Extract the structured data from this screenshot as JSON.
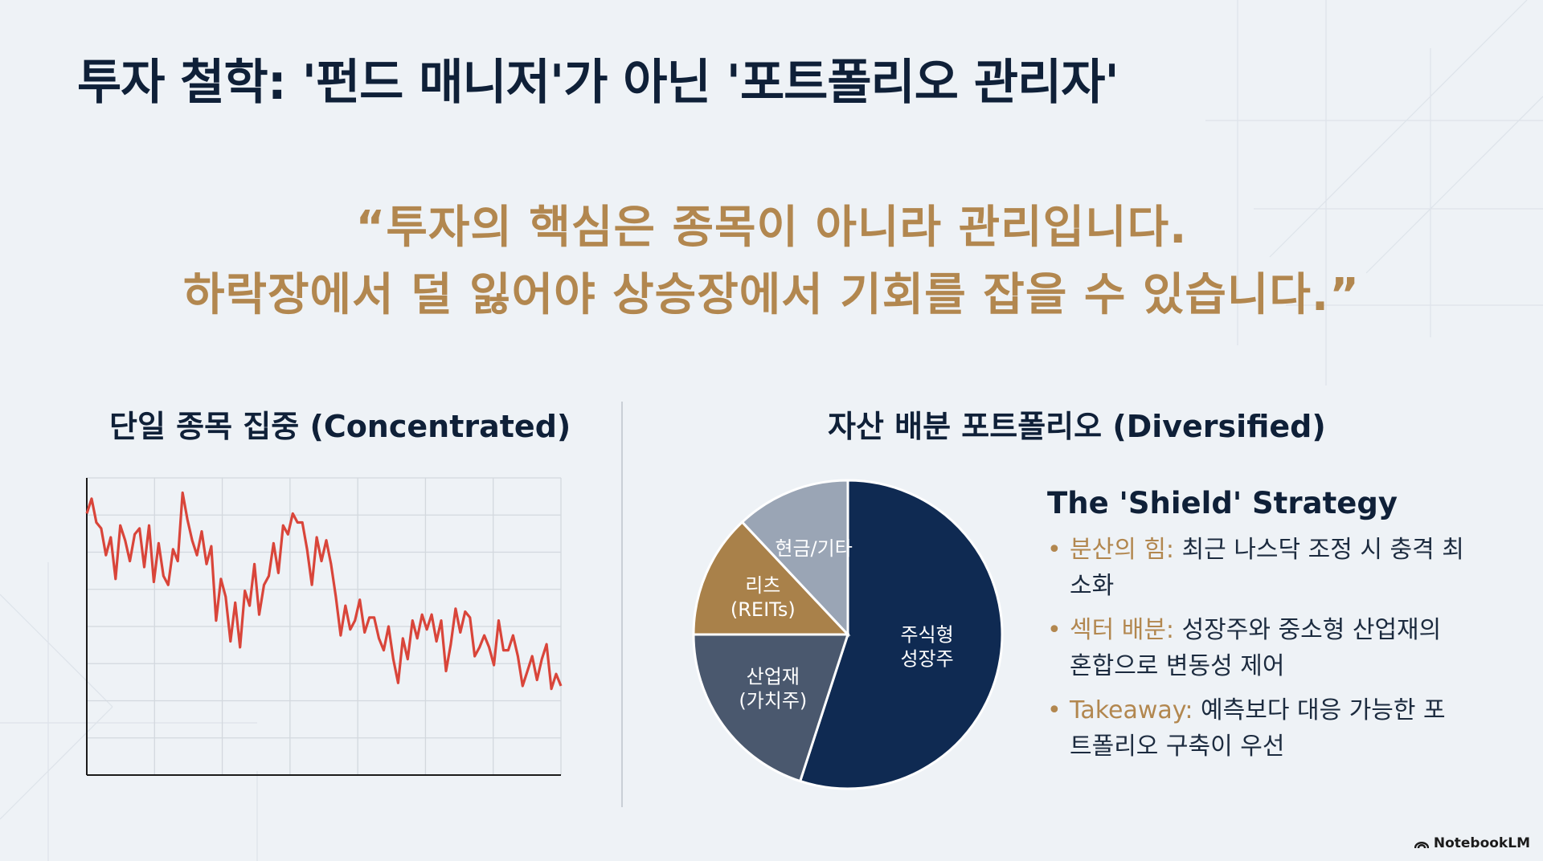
{
  "title": "투자 철학: '펀드 매니저'가 아닌 '포트폴리오 관리자'",
  "quote": {
    "line1": "“투자의 핵심은 종목이 아니라 관리입니다.",
    "line2": "하락장에서 덜 잃어야 상승장에서 기회를 잡을 수 있습니다.”"
  },
  "left_panel": {
    "title": "단일 종목 집중 (Concentrated)"
  },
  "right_panel": {
    "title": "자산 배분 포트폴리오 (Diversified)"
  },
  "shield": {
    "title": "The 'Shield' Strategy",
    "items": [
      {
        "key": "분산의 힘:",
        "text": " 최근 나스닥 조정 시 충격 최소화"
      },
      {
        "key": "섹터 배분:",
        "text": " 성장주와 중소형 산업재의 혼합으로 변동성 제어"
      },
      {
        "key": "Takeaway:",
        "text": " 예측보다 대응 가능한 포트폴리오 구축이 우선"
      }
    ]
  },
  "footer": {
    "brand": "NotebookLM",
    "icon": "notebooklm-logo-icon"
  },
  "colors": {
    "navy": "#0f2038",
    "gold": "#b2874f",
    "slate": "#4a586e",
    "gray_blue": "#9aa5b5",
    "line_red": "#d9453a"
  },
  "chart_data": [
    {
      "type": "line",
      "title": "단일 종목 집중 (Concentrated)",
      "xlabel": "",
      "ylabel": "",
      "grid": true,
      "ylim": [
        0,
        100
      ],
      "x": [
        0,
        1,
        2,
        3,
        4,
        5,
        6,
        7,
        8,
        9,
        10,
        11,
        12,
        13,
        14,
        15,
        16,
        17,
        18,
        19,
        20,
        21,
        22,
        23,
        24,
        25,
        26,
        27,
        28,
        29,
        30,
        31,
        32,
        33,
        34,
        35,
        36,
        37,
        38,
        39,
        40,
        41,
        42,
        43,
        44,
        45,
        46,
        47,
        48,
        49,
        50,
        51,
        52,
        53,
        54,
        55,
        56,
        57,
        58,
        59,
        60,
        61,
        62,
        63,
        64,
        65,
        66,
        67,
        68,
        69,
        70,
        71,
        72,
        73,
        74,
        75,
        76,
        77,
        78,
        79,
        80,
        81,
        82,
        83,
        84,
        85,
        86,
        87,
        88,
        89,
        90,
        91,
        92,
        93,
        94,
        95,
        96,
        97,
        98,
        99
      ],
      "series": [
        {
          "values": [
            88,
            93,
            85,
            83,
            74,
            80,
            66,
            84,
            79,
            72,
            81,
            83,
            70,
            84,
            65,
            78,
            67,
            64,
            76,
            72,
            95,
            86,
            79,
            74,
            82,
            71,
            77,
            52,
            66,
            60,
            45,
            58,
            43,
            62,
            57,
            71,
            54,
            64,
            67,
            78,
            68,
            84,
            81,
            88,
            85,
            85,
            76,
            64,
            80,
            72,
            79,
            71,
            60,
            47,
            57,
            49,
            52,
            59,
            48,
            53,
            53,
            46,
            42,
            50,
            39,
            31,
            46,
            39,
            52,
            46,
            54,
            49,
            54,
            45,
            52,
            35,
            44,
            56,
            48,
            55,
            53,
            40,
            43,
            47,
            43,
            37,
            52,
            42,
            42,
            47,
            40,
            30,
            35,
            40,
            32,
            39,
            44,
            29,
            34,
            30
          ],
          "color": "#d9453a"
        }
      ]
    },
    {
      "type": "pie",
      "title": "자산 배분 포트폴리오 (Diversified)",
      "legend": "none",
      "slices": [
        {
          "label": "주식형\n성장주",
          "label_line1": "주식형",
          "label_line2": "성장주",
          "value": 55,
          "color": "#0f2a52",
          "text_color": "#ffffff"
        },
        {
          "label": "산업재\n(가치주)",
          "label_line1": "산업재",
          "label_line2": "(가치주)",
          "value": 20,
          "color": "#4a586e",
          "text_color": "#ffffff"
        },
        {
          "label": "리츠\n(REITs)",
          "label_line1": "리츠",
          "label_line2": "(REITs)",
          "value": 13,
          "color": "#a9814a",
          "text_color": "#ffffff"
        },
        {
          "label": "현금/기타",
          "label_line1": "현금/기타",
          "label_line2": "",
          "value": 12,
          "color": "#9aa5b5",
          "text_color": "#ffffff"
        }
      ]
    }
  ]
}
